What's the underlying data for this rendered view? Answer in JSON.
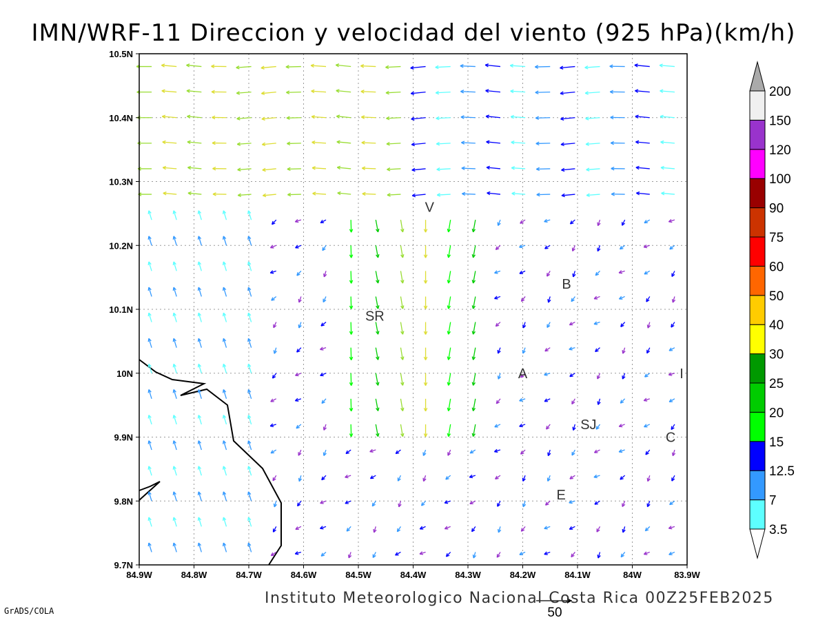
{
  "title": "IMN/WRF-11 Direccion y velocidad del viento (925 hPa)(km/h)",
  "footer": "Instituto Meteorologico Nacional Costa Rica 00Z25FEB2025",
  "software": "GrADS/COLA",
  "reference_vector": {
    "label": "50"
  },
  "map": {
    "lon_ticks": [
      "84.9W",
      "84.8W",
      "84.7W",
      "84.6W",
      "84.5W",
      "84.4W",
      "84.3W",
      "84.2W",
      "84.1W",
      "84W",
      "83.9W"
    ],
    "lat_ticks": [
      "10.5N",
      "10.4N",
      "10.3N",
      "10.2N",
      "10.1N",
      "10N",
      "9.9N",
      "9.8N",
      "9.7N"
    ],
    "lon_range": [
      -84.9,
      -83.9
    ],
    "lat_range": [
      9.7,
      10.5
    ],
    "cities": [
      {
        "code": "V",
        "lon": -84.37,
        "lat": 10.26
      },
      {
        "code": "SR",
        "lon": -84.47,
        "lat": 10.09
      },
      {
        "code": "B",
        "lon": -84.12,
        "lat": 10.14
      },
      {
        "code": "A",
        "lon": -84.2,
        "lat": 10.0
      },
      {
        "code": "I",
        "lon": -83.91,
        "lat": 10.0
      },
      {
        "code": "SJ",
        "lon": -84.08,
        "lat": 9.92
      },
      {
        "code": "C",
        "lon": -83.93,
        "lat": 9.9
      },
      {
        "code": "E",
        "lon": -84.13,
        "lat": 9.81
      }
    ]
  },
  "legend": {
    "labels": [
      "3.5",
      "7",
      "12.5",
      "15",
      "20",
      "25",
      "30",
      "40",
      "50",
      "60",
      "75",
      "90",
      "100",
      "120",
      "150",
      "200"
    ],
    "colors": [
      "#ffffff",
      "#5dffff",
      "#3399ff",
      "#0000ff",
      "#00ff00",
      "#00cc00",
      "#009900",
      "#ffff00",
      "#ffcc00",
      "#ff6600",
      "#ff0000",
      "#cc3300",
      "#990000",
      "#ff00ff",
      "#9933cc",
      "#f0f0f0",
      "#aaaaaa"
    ]
  }
}
